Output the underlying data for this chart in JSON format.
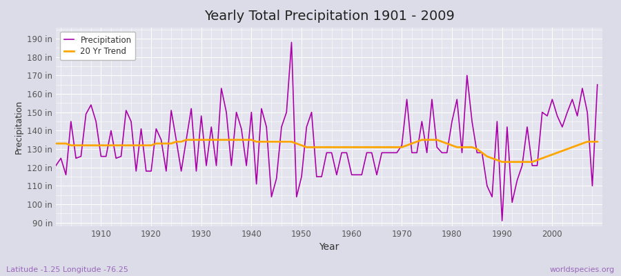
{
  "title": "Yearly Total Precipitation 1901 - 2009",
  "xlabel": "Year",
  "ylabel": "Precipitation",
  "subtitle": "Latitude -1.25 Longitude -76.25",
  "watermark": "worldspecies.org",
  "legend_entries": [
    "Precipitation",
    "20 Yr Trend"
  ],
  "line_color_precip": "#AA00AA",
  "line_color_trend": "#FFA500",
  "bg_color": "#DCDCE8",
  "plot_bg_color": "#E4E4EE",
  "ylim": [
    88,
    196
  ],
  "yticks": [
    90,
    100,
    110,
    120,
    130,
    140,
    150,
    160,
    170,
    180,
    190
  ],
  "ytick_labels": [
    "90 in",
    "100 in",
    "110 in",
    "120 in",
    "130 in",
    "140 in",
    "150 in",
    "160 in",
    "170 in",
    "180 in",
    "190 in"
  ],
  "xlim": [
    1901,
    2010
  ],
  "xticks": [
    1910,
    1920,
    1930,
    1940,
    1950,
    1960,
    1970,
    1980,
    1990,
    2000
  ],
  "years": [
    1901,
    1902,
    1903,
    1904,
    1905,
    1906,
    1907,
    1908,
    1909,
    1910,
    1911,
    1912,
    1913,
    1914,
    1915,
    1916,
    1917,
    1918,
    1919,
    1920,
    1921,
    1922,
    1923,
    1924,
    1925,
    1926,
    1927,
    1928,
    1929,
    1930,
    1931,
    1932,
    1933,
    1934,
    1935,
    1936,
    1937,
    1938,
    1939,
    1940,
    1941,
    1942,
    1943,
    1944,
    1945,
    1946,
    1947,
    1948,
    1949,
    1950,
    1951,
    1952,
    1953,
    1954,
    1955,
    1956,
    1957,
    1958,
    1959,
    1960,
    1961,
    1962,
    1963,
    1964,
    1965,
    1966,
    1967,
    1968,
    1969,
    1970,
    1971,
    1972,
    1973,
    1974,
    1975,
    1976,
    1977,
    1978,
    1979,
    1980,
    1981,
    1982,
    1983,
    1984,
    1985,
    1986,
    1987,
    1988,
    1989,
    1990,
    1991,
    1992,
    1993,
    1994,
    1995,
    1996,
    1997,
    1998,
    1999,
    2000,
    2001,
    2002,
    2003,
    2004,
    2005,
    2006,
    2007,
    2008,
    2009
  ],
  "precip": [
    121,
    125,
    116,
    145,
    125,
    126,
    149,
    154,
    145,
    126,
    126,
    140,
    125,
    126,
    151,
    145,
    118,
    141,
    118,
    118,
    141,
    135,
    118,
    151,
    135,
    118,
    135,
    152,
    118,
    148,
    121,
    142,
    121,
    163,
    150,
    121,
    150,
    141,
    121,
    150,
    111,
    152,
    142,
    104,
    114,
    142,
    150,
    188,
    104,
    115,
    142,
    150,
    115,
    115,
    128,
    128,
    116,
    128,
    128,
    116,
    116,
    116,
    128,
    128,
    116,
    128,
    128,
    128,
    128,
    132,
    157,
    128,
    128,
    145,
    128,
    157,
    131,
    128,
    128,
    145,
    157,
    128,
    170,
    145,
    128,
    128,
    110,
    104,
    145,
    91,
    142,
    101,
    113,
    121,
    142,
    121,
    121,
    150,
    148,
    157,
    148,
    142,
    150,
    157,
    148,
    163,
    150,
    110,
    165
  ],
  "trend": [
    133,
    133,
    133,
    132,
    132,
    132,
    132,
    132,
    132,
    132,
    132,
    132,
    132,
    132,
    132,
    132,
    132,
    132,
    132,
    132,
    133,
    133,
    133,
    133,
    134,
    134,
    135,
    135,
    135,
    135,
    135,
    135,
    135,
    135,
    135,
    135,
    135,
    135,
    135,
    135,
    134,
    134,
    134,
    134,
    134,
    134,
    134,
    134,
    133,
    132,
    131,
    131,
    131,
    131,
    131,
    131,
    131,
    131,
    131,
    131,
    131,
    131,
    131,
    131,
    131,
    131,
    131,
    131,
    131,
    131,
    132,
    133,
    134,
    135,
    135,
    135,
    135,
    134,
    133,
    132,
    131,
    131,
    131,
    131,
    130,
    128,
    126,
    125,
    124,
    123,
    123,
    123,
    123,
    123,
    123,
    123,
    124,
    125,
    126,
    127,
    128,
    129,
    130,
    131,
    132,
    133,
    134,
    134,
    134
  ]
}
